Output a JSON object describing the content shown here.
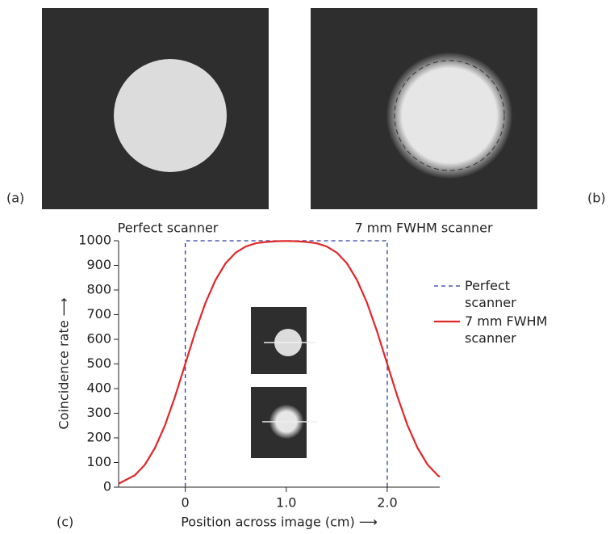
{
  "panels": [
    {
      "label": "(a)",
      "caption": "Perfect scanner"
    },
    {
      "label": "(b)",
      "caption": "7 mm FWHM scanner"
    }
  ],
  "chart_data": {
    "type": "line",
    "panel_label": "(c)",
    "x_label": "Position across image (cm) ⟶",
    "y_label": "Coincidence rate ⟶",
    "series": [
      {
        "name": "Perfect scanner",
        "color": "#2b3a9e",
        "dashed": true,
        "x": [
          0,
          0,
          2,
          2
        ],
        "values": [
          0,
          1000,
          1000,
          0
        ]
      },
      {
        "name": "7 mm FWHM scanner",
        "color": "#e0282a",
        "dashed": false,
        "x": [
          -0.66,
          -0.5,
          -0.4,
          -0.3,
          -0.2,
          -0.1,
          0,
          0.1,
          0.2,
          0.3,
          0.4,
          0.5,
          0.6,
          0.7,
          0.8,
          0.9,
          1.0,
          1.1,
          1.2,
          1.3,
          1.4,
          1.5,
          1.6,
          1.7,
          1.8,
          1.9,
          2.0,
          2.1,
          2.2,
          2.3,
          2.4,
          2.5,
          2.52
        ],
        "values": [
          14,
          48,
          91,
          159,
          252,
          369,
          500,
          631,
          748,
          841,
          909,
          952,
          977,
          990,
          995,
          998,
          999,
          998,
          995,
          990,
          977,
          952,
          909,
          841,
          748,
          631,
          500,
          369,
          252,
          159,
          91,
          48,
          42
        ]
      }
    ],
    "xlim": [
      -0.66,
      2.52
    ],
    "ylim": [
      0,
      1000
    ],
    "xticks": [
      0,
      {
        "value": 1,
        "label": "1.0"
      },
      {
        "value": 2,
        "label": "2.0"
      }
    ],
    "yticks": [
      0,
      100,
      200,
      300,
      400,
      500,
      600,
      700,
      800,
      900,
      1000
    ],
    "legend": "right"
  }
}
